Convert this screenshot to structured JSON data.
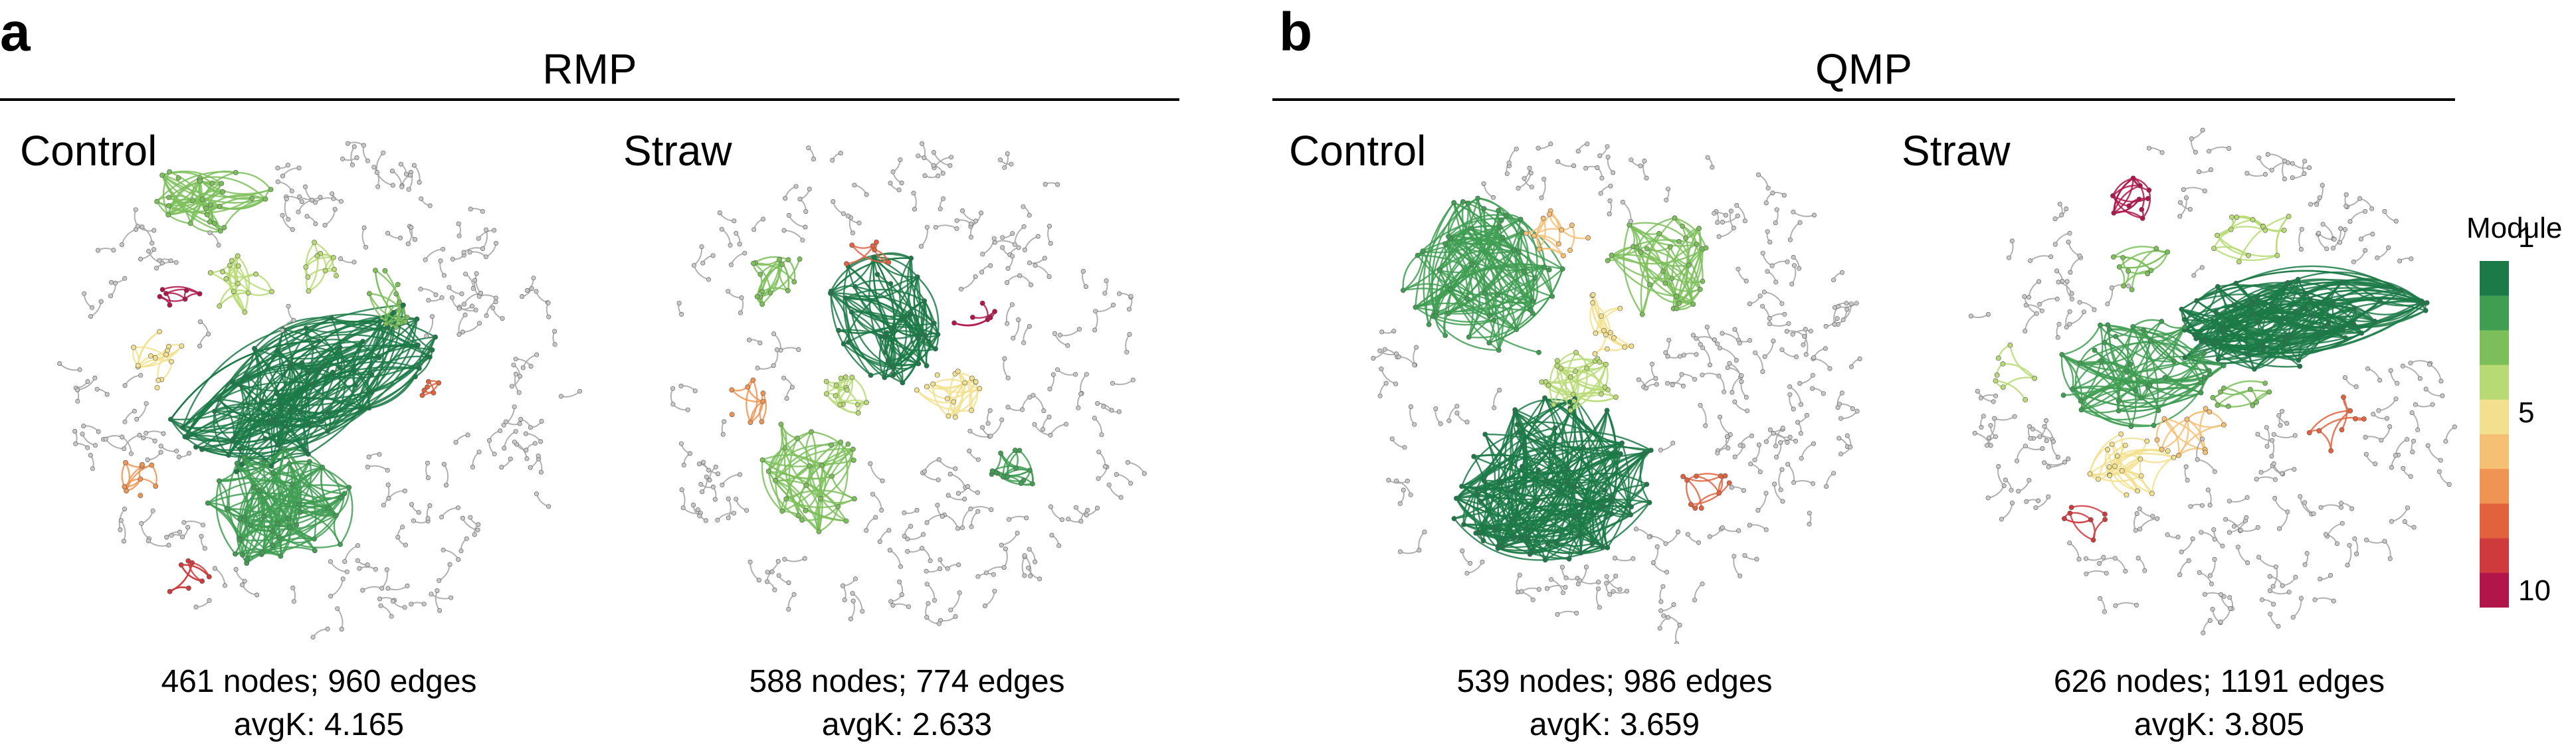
{
  "panels": [
    {
      "letter": "a",
      "title": "RMP",
      "networks": [
        {
          "condition": "Control",
          "stats_line1": "461 nodes; 960 edges",
          "stats_line2": "avgK: 4.165"
        },
        {
          "condition": "Straw",
          "stats_line1": "588 nodes; 774 edges",
          "stats_line2": "avgK: 2.633"
        }
      ]
    },
    {
      "letter": "b",
      "title": "QMP",
      "networks": [
        {
          "condition": "Control",
          "stats_line1": "539 nodes; 986 edges",
          "stats_line2": "avgK: 3.659"
        },
        {
          "condition": "Straw",
          "stats_line1": "626 nodes; 1191 edges",
          "stats_line2": "avgK: 3.805"
        }
      ]
    }
  ],
  "legend": {
    "title": "Module",
    "ticks": [
      "1",
      "5",
      "10"
    ],
    "colors": [
      "#1b7a47",
      "#3f9e52",
      "#7cbf5a",
      "#b8da75",
      "#f2e08e",
      "#f6c074",
      "#ef9452",
      "#e2623e",
      "#cf3b3d",
      "#b1154a"
    ]
  },
  "node_color_unassigned": "#a8a8a8"
}
